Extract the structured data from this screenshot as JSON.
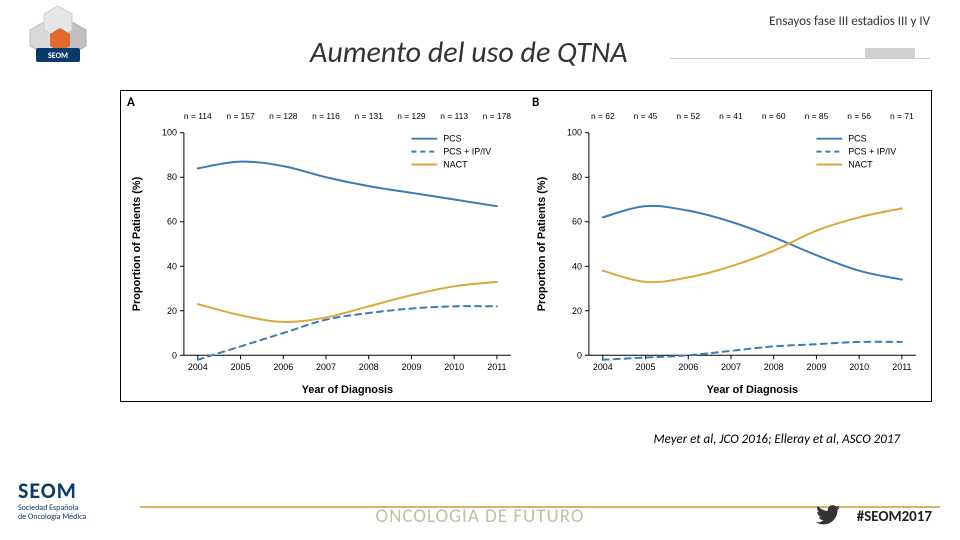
{
  "header": {
    "subtitle": "Ensayos fase III estadios III y IV",
    "title": "Aumento del uso de QTNA"
  },
  "figure": {
    "panelA": {
      "label": "A",
      "n_labels": [
        "n = 114",
        "n = 157",
        "n = 128",
        "n = 116",
        "n = 131",
        "n = 129",
        "n = 113",
        "n = 178"
      ],
      "x_ticks": [
        "2004",
        "2005",
        "2006",
        "2007",
        "2008",
        "2009",
        "2010",
        "2011"
      ],
      "x_label": "Year of Diagnosis",
      "y_label": "Proportion of Patients (%)",
      "ylim": [
        0,
        100
      ],
      "y_ticks": [
        0,
        20,
        40,
        60,
        80,
        100
      ],
      "legend": [
        {
          "label": "PCS",
          "color": "#3b7cb5",
          "dash": "solid"
        },
        {
          "label": "PCS + IP/IV",
          "color": "#3b7cb5",
          "dash": "dashed"
        },
        {
          "label": "NACT",
          "color": "#d9a93b",
          "dash": "solid"
        }
      ],
      "series": {
        "pcs": [
          84,
          87,
          85,
          80,
          76,
          73,
          70,
          67
        ],
        "pcs_ip": [
          -2,
          4,
          10,
          16,
          19,
          21,
          22,
          22
        ],
        "nact": [
          23,
          18,
          15,
          17,
          22,
          27,
          31,
          33
        ]
      },
      "line_width": 2,
      "background_color": "#ffffff"
    },
    "panelB": {
      "label": "B",
      "n_labels": [
        "n = 62",
        "n = 45",
        "n = 52",
        "n = 41",
        "n = 60",
        "n = 85",
        "n = 56",
        "n = 71"
      ],
      "x_ticks": [
        "2004",
        "2005",
        "2006",
        "2007",
        "2008",
        "2009",
        "2010",
        "2011"
      ],
      "x_label": "Year of Diagnosis",
      "y_label": "Proportion of Patients (%)",
      "ylim": [
        0,
        100
      ],
      "y_ticks": [
        0,
        20,
        40,
        60,
        80,
        100
      ],
      "legend": [
        {
          "label": "PCS",
          "color": "#3b7cb5",
          "dash": "solid"
        },
        {
          "label": "PCS + IP/IV",
          "color": "#3b7cb5",
          "dash": "dashed"
        },
        {
          "label": "NACT",
          "color": "#d9a93b",
          "dash": "solid"
        }
      ],
      "series": {
        "pcs": [
          62,
          67,
          65,
          60,
          53,
          45,
          38,
          34
        ],
        "pcs_ip": [
          -2,
          -1,
          0,
          2,
          4,
          5,
          6,
          6
        ],
        "nact": [
          38,
          33,
          35,
          40,
          47,
          56,
          62,
          66
        ]
      },
      "line_width": 2,
      "background_color": "#ffffff"
    }
  },
  "citation": "Meyer et al, JCO 2016; Elleray et al, ASCO 2017",
  "footer": {
    "org_short": "SEOM",
    "org_long1": "Sociedad Española",
    "org_long2": "de Oncología Médica",
    "center": "ONCOLOGÍA DE FUTURO",
    "hashtag": "#SEOM2017"
  },
  "colors": {
    "blue": "#3b7cb5",
    "gold": "#d9a93b",
    "footer_rule": "#d5b56a",
    "footer_center": "#c0bfa4",
    "navy": "#0a3a6a"
  }
}
